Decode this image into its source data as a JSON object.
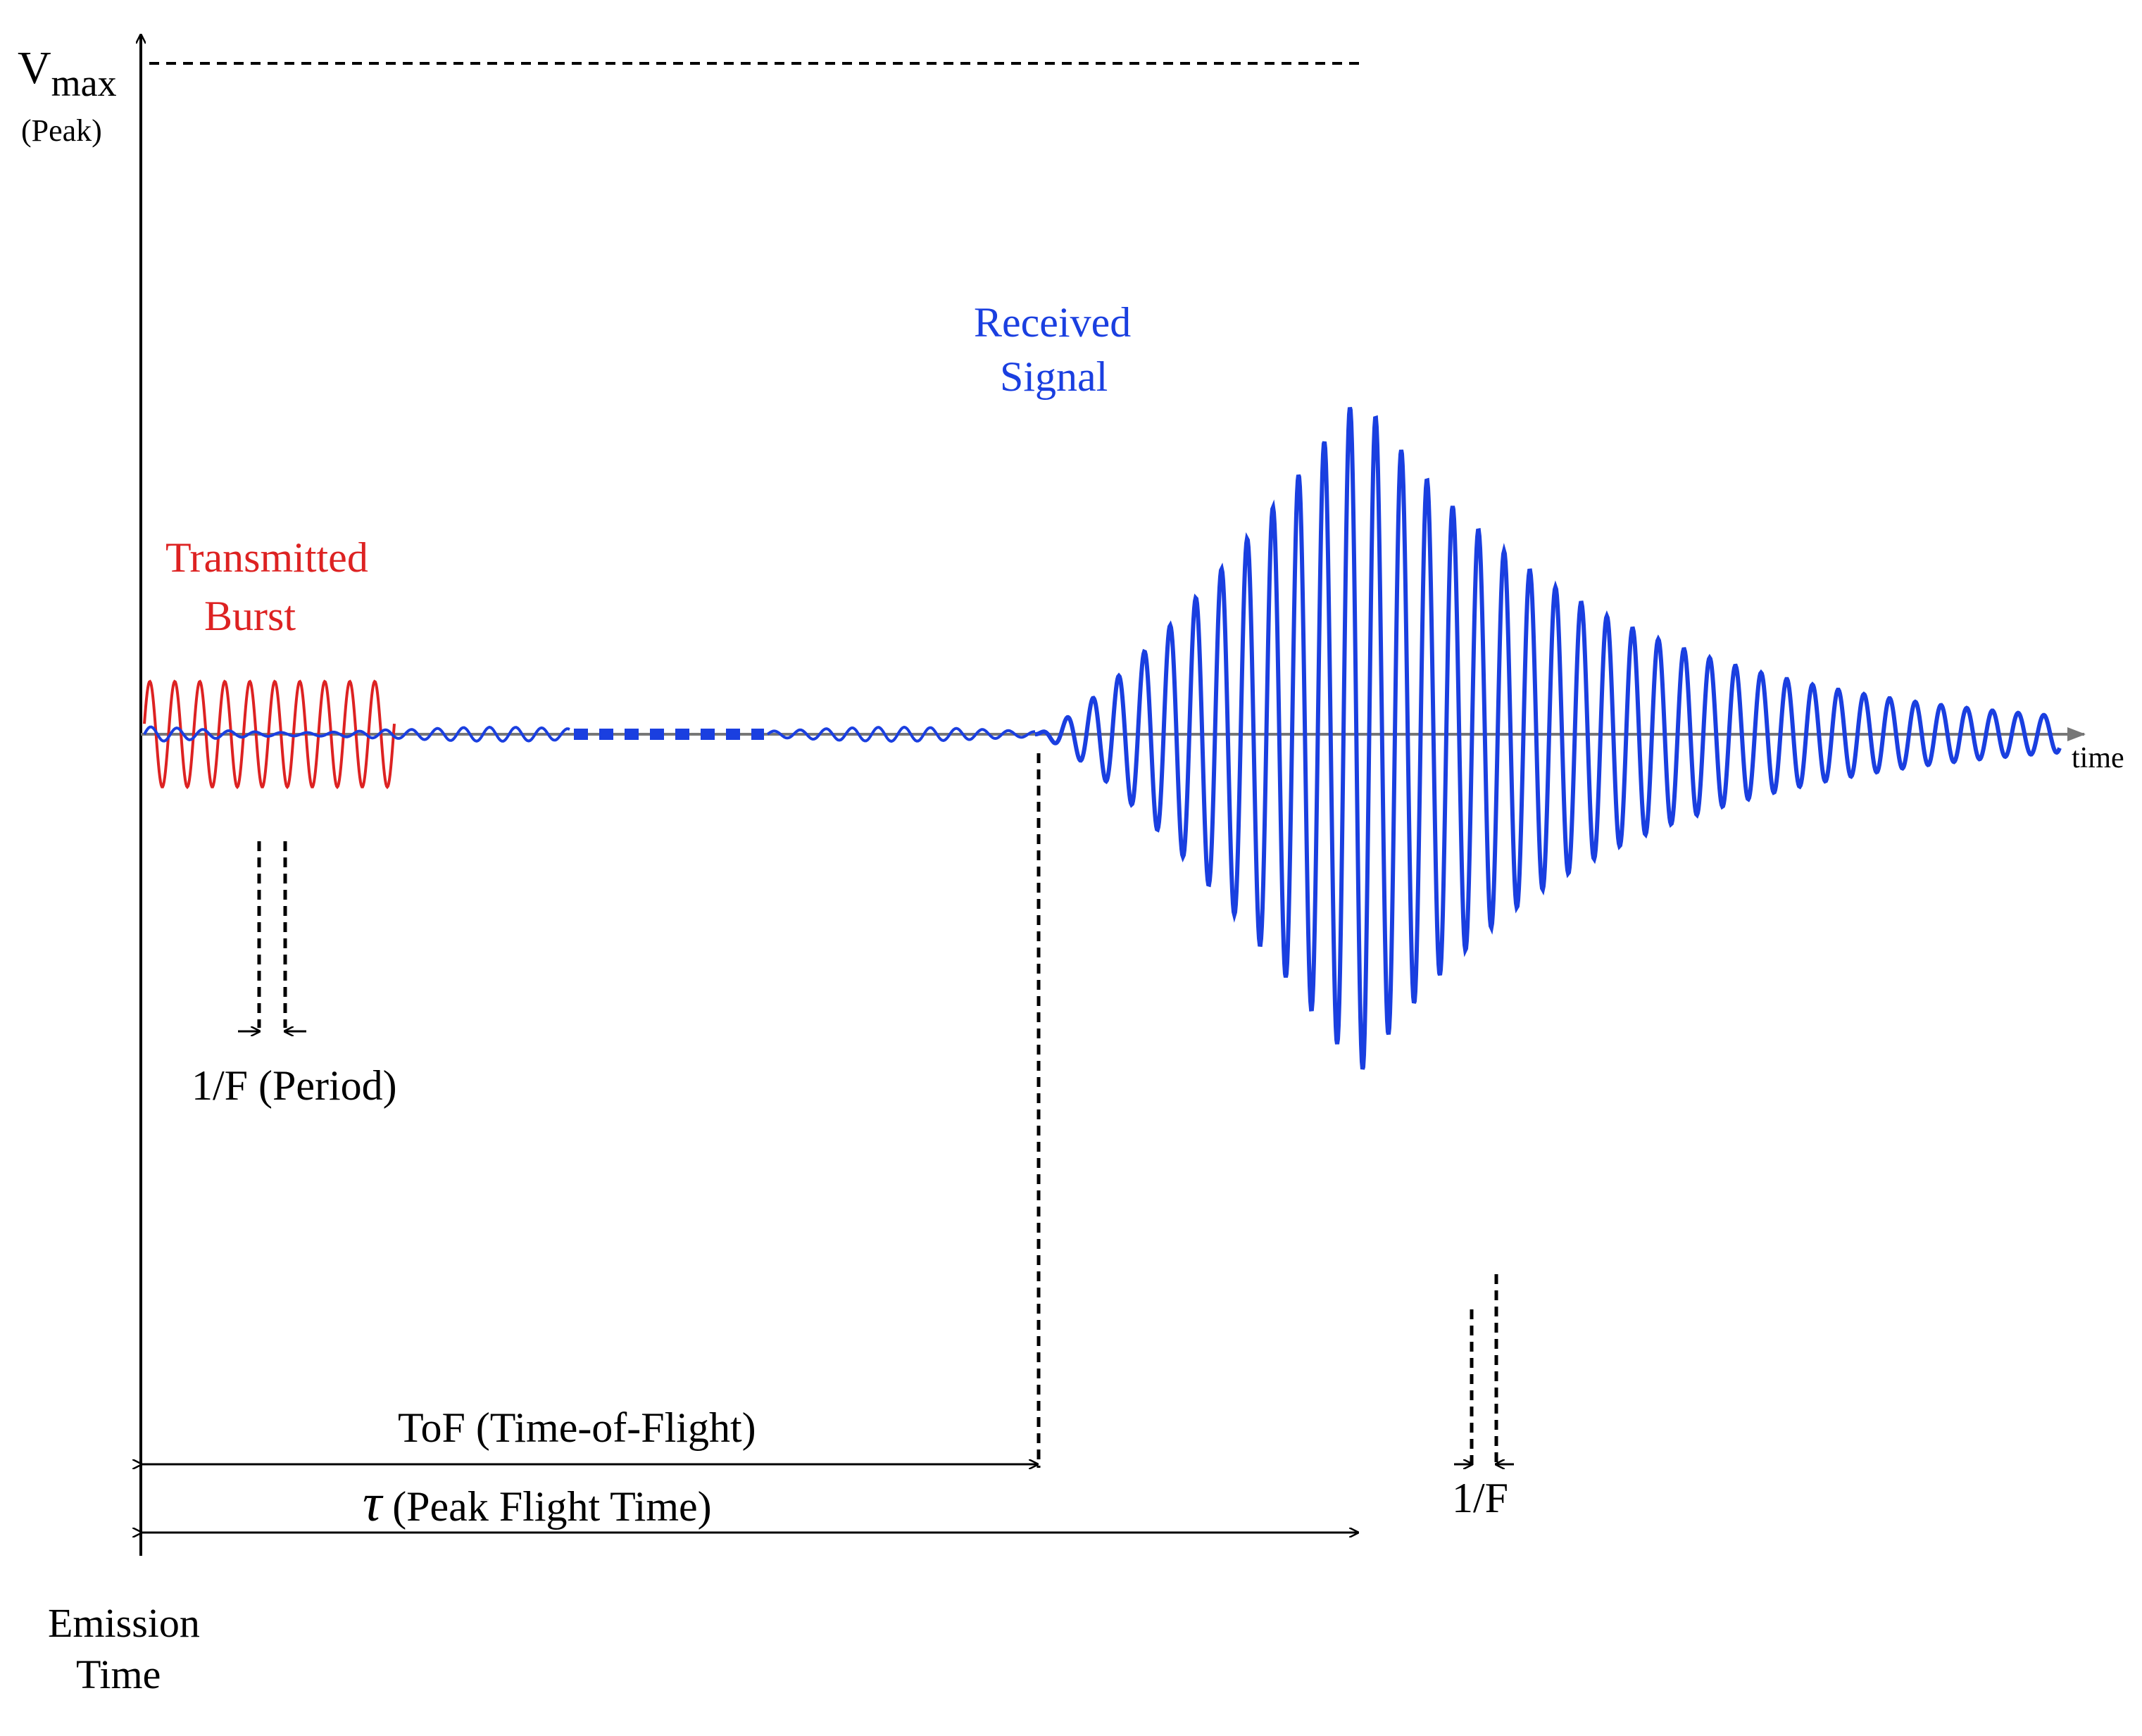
{
  "labels": {
    "v_max": "V",
    "v_max_sub": "max",
    "peak": "(Peak)",
    "time_axis": "time",
    "emission_line1": "Emission",
    "emission_line2": "Time",
    "transmitted_line1": "Transmitted",
    "transmitted_line2": "Burst",
    "received_line1": "Received",
    "received_line2": "Signal",
    "period": "1/F (Period)",
    "tof": "ToF (Time-of-Flight)",
    "tau_symbol": "τ",
    "tau_text": " (Peak Flight Time)",
    "period_right": "1/F"
  },
  "colors": {
    "transmitted": "#dd2222",
    "received": "#1a3fe0",
    "axis": "#000000",
    "time_axis": "#777777"
  }
}
